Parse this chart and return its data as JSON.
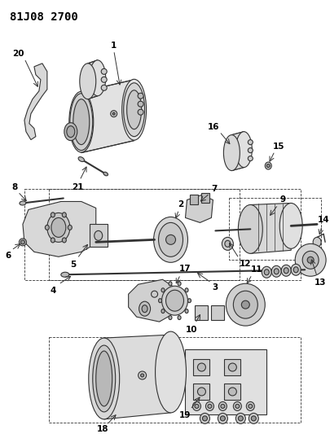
{
  "title": "81J08 2700",
  "bg_color": "#ffffff",
  "lc": "#333333",
  "lc_thin": "#555555",
  "fig_width": 4.05,
  "fig_height": 5.33,
  "dpi": 100,
  "label_fontsize": 7.5,
  "title_fontsize": 10
}
